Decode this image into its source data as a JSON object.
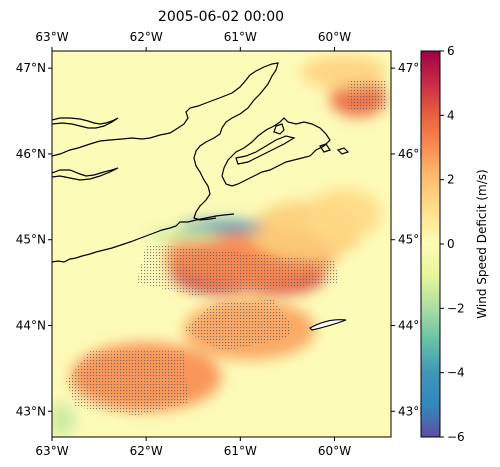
{
  "chart_data": {
    "type": "heatmap",
    "title": "2005-06-02 00:00",
    "x_ticks": [
      "63°W",
      "62°W",
      "61°W",
      "60°W"
    ],
    "x_tick_values": [
      -63,
      -62,
      -61,
      -60
    ],
    "y_ticks": [
      "47°N",
      "46°N",
      "45°N",
      "44°N",
      "43°N"
    ],
    "y_tick_values": [
      47,
      46,
      45,
      44,
      43
    ],
    "xlim": [
      -63.0,
      -59.4
    ],
    "ylim": [
      42.7,
      47.2
    ],
    "colorbar": {
      "label": "Wind Speed Deficit (m/s)",
      "range": [
        -6,
        6
      ],
      "ticks": [
        -6,
        -4,
        -2,
        0,
        2,
        4,
        6
      ],
      "tick_labels": [
        "−6",
        "−4",
        "−2",
        "0",
        "2",
        "4",
        "6"
      ],
      "colormap": "Spectral_r"
    },
    "background_value": 0,
    "fields": [
      {
        "kind": "deficit",
        "value": 5.0,
        "center": [
          -61.2,
          44.65
        ],
        "extent": [
          0.55,
          0.28
        ]
      },
      {
        "kind": "deficit",
        "value": 4.6,
        "center": [
          -60.6,
          44.58
        ],
        "extent": [
          0.5,
          0.22
        ]
      },
      {
        "kind": "deficit",
        "value": 3.0,
        "center": [
          -60.9,
          44.8
        ],
        "extent": [
          0.9,
          0.35
        ]
      },
      {
        "kind": "deficit",
        "value": 1.6,
        "center": [
          -60.3,
          45.1
        ],
        "extent": [
          0.6,
          0.35
        ]
      },
      {
        "kind": "deficit",
        "value": 1.2,
        "center": [
          -59.9,
          45.3
        ],
        "extent": [
          0.4,
          0.3
        ]
      },
      {
        "kind": "deficit",
        "value": 3.8,
        "center": [
          -59.75,
          46.65
        ],
        "extent": [
          0.3,
          0.22
        ]
      },
      {
        "kind": "deficit",
        "value": 1.4,
        "center": [
          -59.9,
          46.95
        ],
        "extent": [
          0.45,
          0.2
        ]
      },
      {
        "kind": "deficit",
        "value": 3.0,
        "center": [
          -62.0,
          43.4
        ],
        "extent": [
          0.8,
          0.4
        ]
      },
      {
        "kind": "deficit",
        "value": 2.6,
        "center": [
          -60.9,
          43.95
        ],
        "extent": [
          0.7,
          0.35
        ]
      },
      {
        "kind": "excess",
        "value": -4.0,
        "center": [
          -61.2,
          45.15
        ],
        "extent": [
          0.45,
          0.08
        ]
      },
      {
        "kind": "excess",
        "value": -1.5,
        "center": [
          -61.6,
          45.05
        ],
        "extent": [
          0.4,
          0.08
        ]
      },
      {
        "kind": "excess",
        "value": -1.5,
        "center": [
          -62.9,
          42.9
        ],
        "extent": [
          0.15,
          0.2
        ]
      }
    ],
    "hatched_regions": [
      {
        "name": "northeast",
        "polygon": [
          [
            -59.85,
            46.85
          ],
          [
            -59.45,
            46.85
          ],
          [
            -59.45,
            46.5
          ],
          [
            -59.85,
            46.5
          ]
        ]
      },
      {
        "name": "central",
        "polygon": [
          [
            -62.0,
            44.95
          ],
          [
            -60.0,
            44.75
          ],
          [
            -59.95,
            44.5
          ],
          [
            -61.5,
            44.35
          ],
          [
            -62.1,
            44.5
          ]
        ]
      },
      {
        "name": "southwest",
        "polygon": [
          [
            -62.6,
            43.7
          ],
          [
            -61.6,
            43.7
          ],
          [
            -61.55,
            43.1
          ],
          [
            -62.1,
            42.95
          ],
          [
            -62.75,
            43.05
          ],
          [
            -62.85,
            43.35
          ]
        ]
      },
      {
        "name": "south-central",
        "polygon": [
          [
            -61.3,
            44.25
          ],
          [
            -60.65,
            44.3
          ],
          [
            -60.45,
            44.0
          ],
          [
            -60.5,
            43.85
          ],
          [
            -61.2,
            43.7
          ],
          [
            -61.6,
            43.95
          ]
        ]
      }
    ]
  }
}
